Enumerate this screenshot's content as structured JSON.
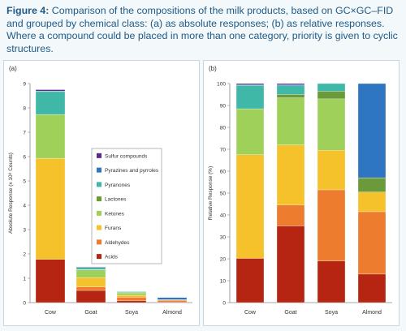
{
  "caption": {
    "figure": "Figure 4:",
    "text": "Comparison of the compositions of the milk products, based on GC×GC–FID and grouped by chemical class: (a) as absolute responses; (b) as relative responses. Where a compound could be placed in more than one category, priority is given to cyclic structures."
  },
  "chart_data": [
    {
      "panel": "(a)",
      "type": "bar",
      "stacked": true,
      "ylabel": "Absolute Response (x 10⁸ Counts)",
      "ylim": [
        0,
        9
      ],
      "yticks": [
        0,
        1,
        2,
        3,
        4,
        5,
        6,
        7,
        8,
        9
      ],
      "categories": [
        "Cow",
        "Goat",
        "Soya",
        "Almond"
      ],
      "legend": "inside-center",
      "series": [
        {
          "name": "Acids",
          "color": "#b52512",
          "values": [
            1.78,
            0.5,
            0.08,
            0.03
          ]
        },
        {
          "name": "Aldehydes",
          "color": "#ee7c2e",
          "values": [
            0.0,
            0.14,
            0.14,
            0.06
          ]
        },
        {
          "name": "Furans",
          "color": "#f5c22c",
          "values": [
            4.15,
            0.39,
            0.08,
            0.02
          ]
        },
        {
          "name": "Ketones",
          "color": "#9fd15a",
          "values": [
            1.8,
            0.31,
            0.1,
            0.0
          ]
        },
        {
          "name": "Lactones",
          "color": "#6a9a3a",
          "values": [
            0.0,
            0.02,
            0.02,
            0.01
          ]
        },
        {
          "name": "Pyranones",
          "color": "#3fb8a8",
          "values": [
            0.94,
            0.08,
            0.03,
            0.0
          ]
        },
        {
          "name": "Pyrazines and pyrroles",
          "color": "#2f76c2",
          "values": [
            0.02,
            0.01,
            0.0,
            0.09
          ]
        },
        {
          "name": "Sulfur compounds",
          "color": "#5b2a8a",
          "values": [
            0.06,
            0.02,
            0.0,
            0.0
          ]
        }
      ]
    },
    {
      "panel": "(b)",
      "type": "bar",
      "stacked": true,
      "ylabel": "Relative Response (%)",
      "ylim": [
        0,
        100
      ],
      "yticks": [
        0,
        10,
        20,
        30,
        40,
        50,
        60,
        70,
        80,
        90,
        100
      ],
      "categories": [
        "Cow",
        "Goat",
        "Soya",
        "Almond"
      ],
      "series": [
        {
          "name": "Acids",
          "color": "#b52512",
          "values": [
            20.2,
            35.0,
            19.0,
            13.0
          ]
        },
        {
          "name": "Aldehydes",
          "color": "#ee7c2e",
          "values": [
            0.0,
            9.5,
            32.5,
            28.5
          ]
        },
        {
          "name": "Furans",
          "color": "#f5c22c",
          "values": [
            47.3,
            27.5,
            18.0,
            9.0
          ]
        },
        {
          "name": "Ketones",
          "color": "#9fd15a",
          "values": [
            21.0,
            21.5,
            23.5,
            0.0
          ]
        },
        {
          "name": "Lactones",
          "color": "#6a9a3a",
          "values": [
            0.0,
            1.5,
            3.5,
            6.5
          ]
        },
        {
          "name": "Pyranones",
          "color": "#3fb8a8",
          "values": [
            10.7,
            4.0,
            3.5,
            0.0
          ]
        },
        {
          "name": "Pyrazines and pyrroles",
          "color": "#2f76c2",
          "values": [
            0.3,
            0.5,
            0.0,
            43.0
          ]
        },
        {
          "name": "Sulfur compounds",
          "color": "#5b2a8a",
          "values": [
            0.5,
            0.5,
            0.0,
            0.0
          ]
        }
      ]
    }
  ]
}
